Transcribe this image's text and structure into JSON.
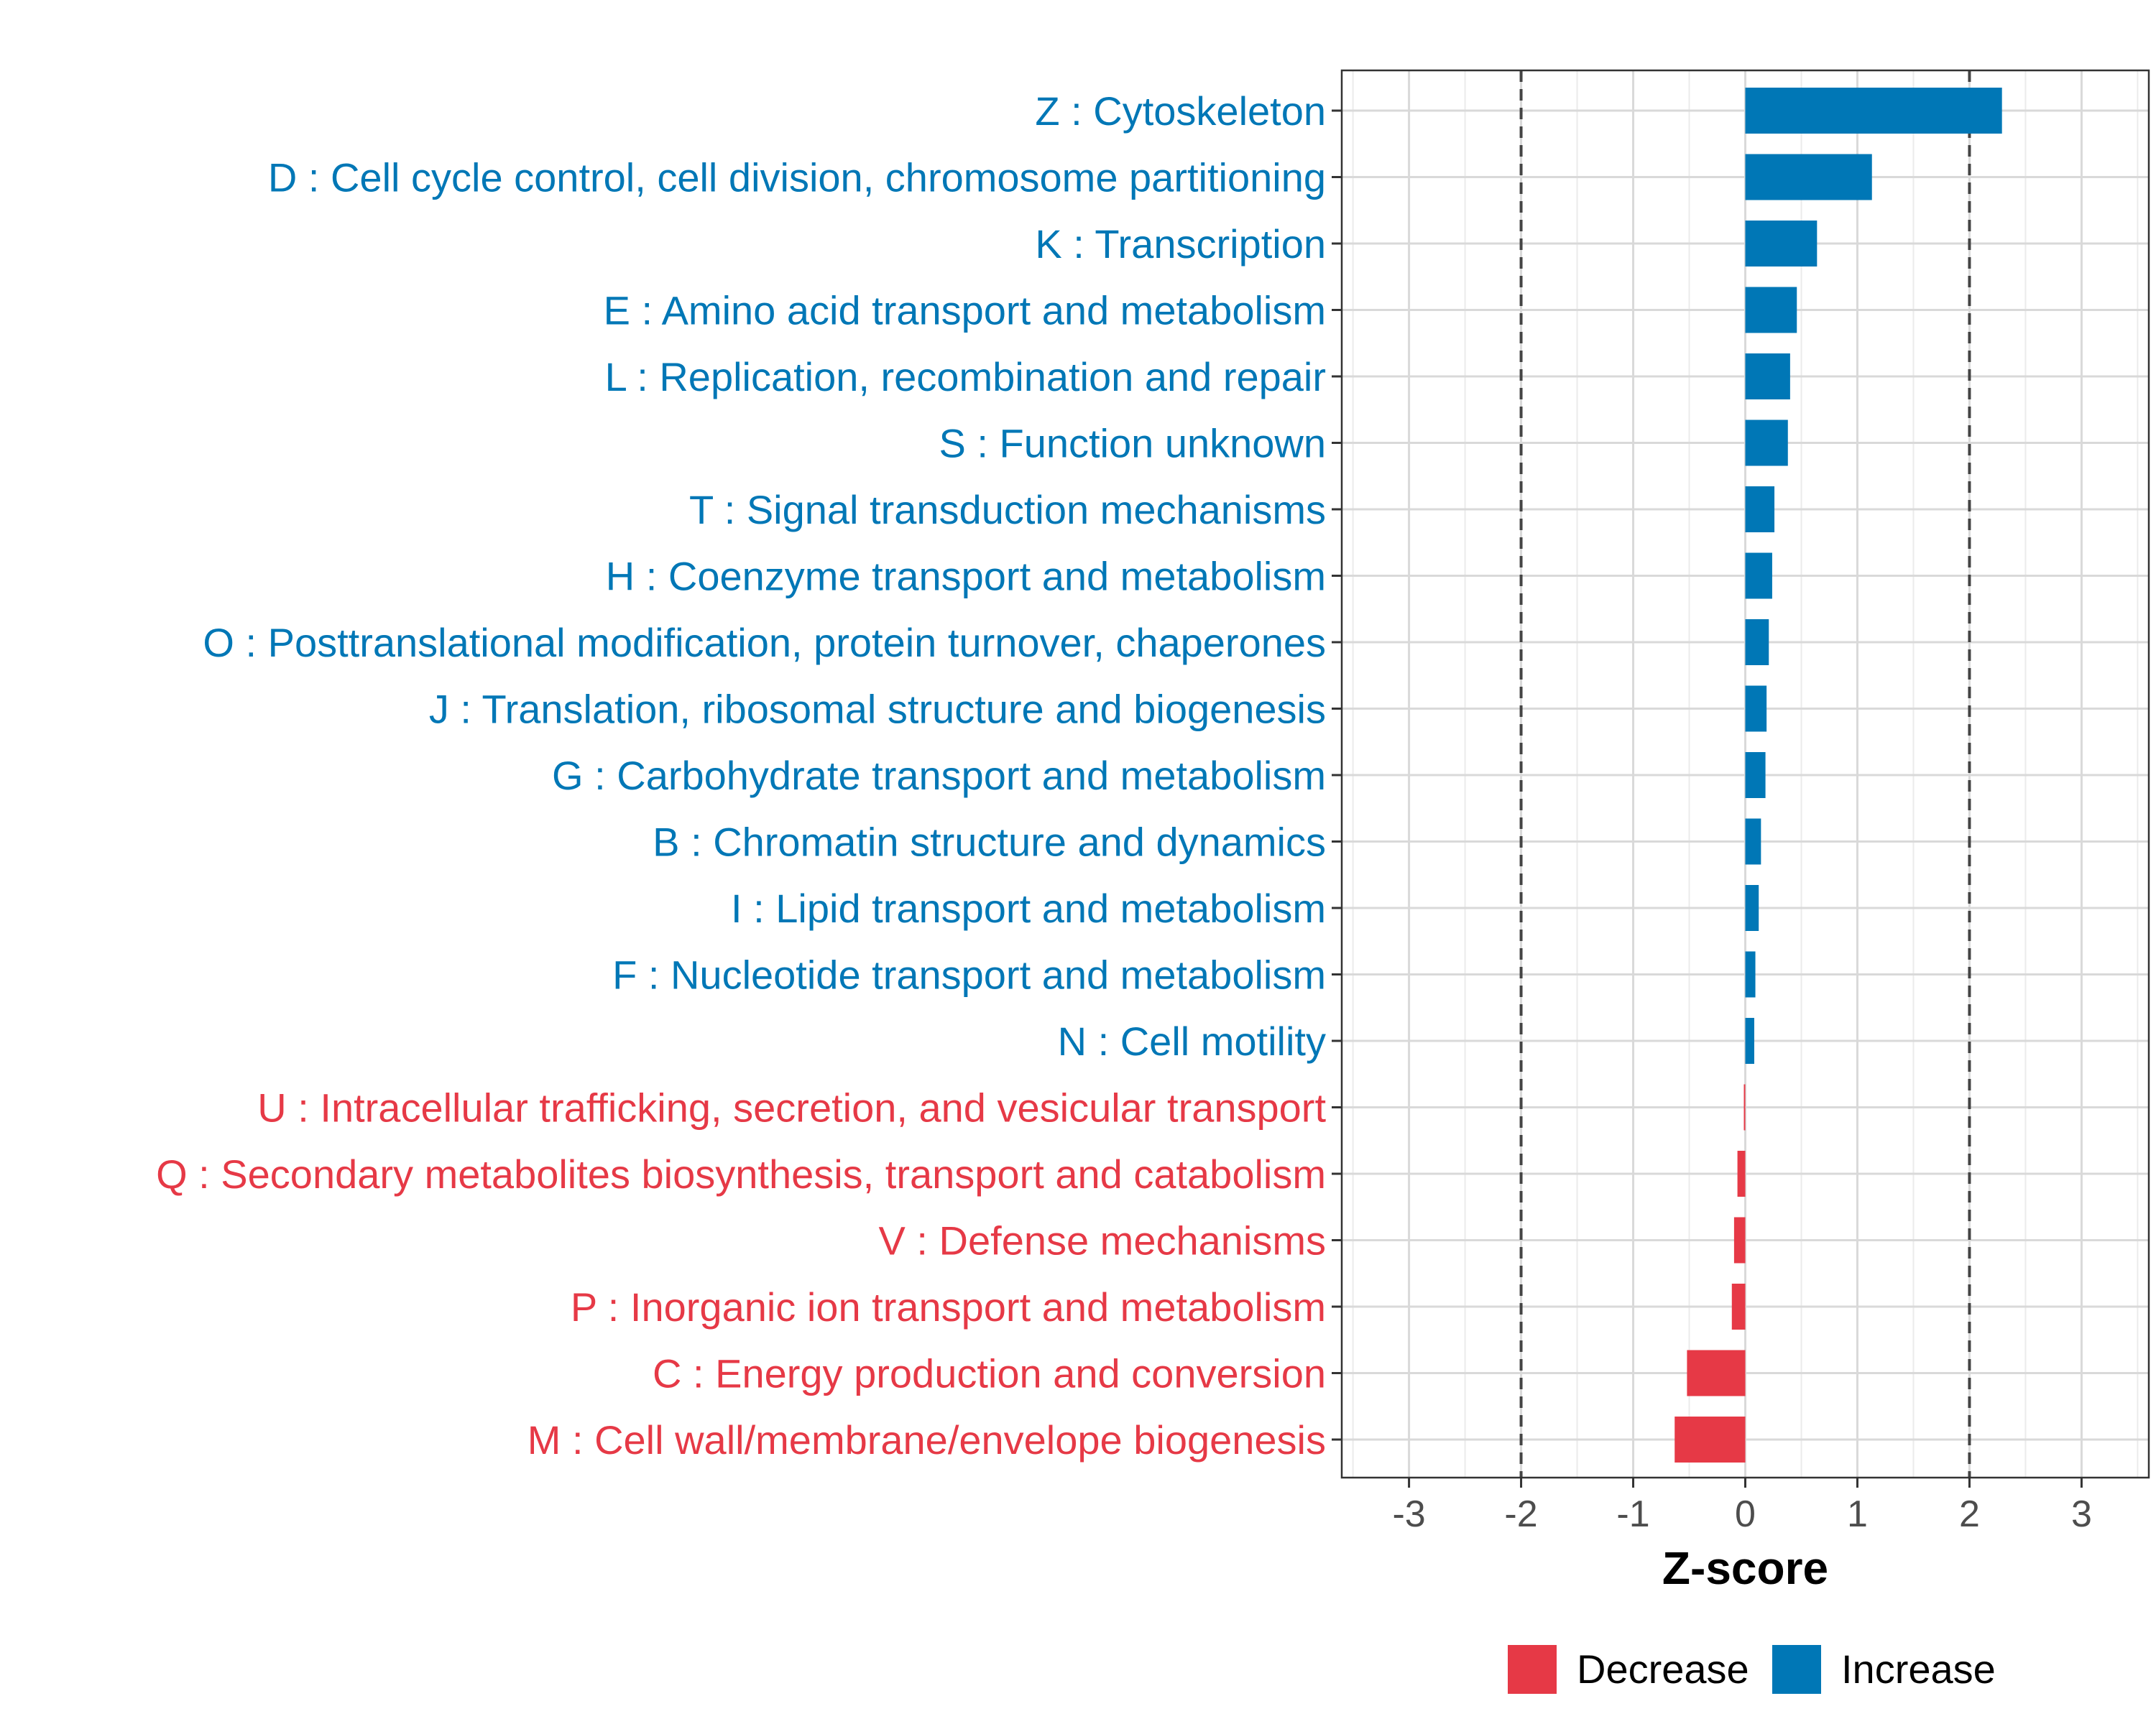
{
  "chart_data": {
    "type": "bar",
    "orientation": "horizontal",
    "title": "",
    "xlabel": "Z-score",
    "ylabel": "",
    "xlim": [
      -3.6,
      3.6
    ],
    "xticks": [
      -3,
      -2,
      -1,
      0,
      1,
      2,
      3
    ],
    "reference_lines": [
      -2,
      2
    ],
    "grid": true,
    "legend_position": "bottom",
    "legend": [
      {
        "name": "Decrease",
        "color": "#e63946"
      },
      {
        "name": "Increase",
        "color": "#0077b6"
      }
    ],
    "categories": [
      "Z : Cytoskeleton",
      "D : Cell cycle control, cell division, chromosome partitioning",
      "K : Transcription",
      "E : Amino acid transport and metabolism",
      "L : Replication, recombination and repair",
      "S : Function unknown",
      "T : Signal transduction mechanisms",
      "H : Coenzyme transport and metabolism",
      "O : Posttranslational modification, protein turnover, chaperones",
      "J : Translation, ribosomal structure and biogenesis",
      "G : Carbohydrate transport and metabolism",
      "B : Chromatin structure and dynamics",
      "I : Lipid transport and metabolism",
      "F : Nucleotide transport and metabolism",
      "N : Cell motility",
      "U : Intracellular trafficking, secretion, and vesicular transport",
      "Q : Secondary metabolites biosynthesis, transport and catabolism",
      "V : Defense mechanisms",
      "P : Inorganic ion transport and metabolism",
      "C : Energy production and conversion",
      "M : Cell wall/membrane/envelope biogenesis"
    ],
    "values": [
      2.29,
      1.13,
      0.64,
      0.46,
      0.4,
      0.38,
      0.26,
      0.24,
      0.21,
      0.19,
      0.18,
      0.14,
      0.12,
      0.09,
      0.08,
      -0.01,
      -0.07,
      -0.1,
      -0.12,
      -0.52,
      -0.63
    ],
    "groups": [
      "Increase",
      "Increase",
      "Increase",
      "Increase",
      "Increase",
      "Increase",
      "Increase",
      "Increase",
      "Increase",
      "Increase",
      "Increase",
      "Increase",
      "Increase",
      "Increase",
      "Increase",
      "Decrease",
      "Decrease",
      "Decrease",
      "Decrease",
      "Decrease",
      "Decrease"
    ]
  }
}
